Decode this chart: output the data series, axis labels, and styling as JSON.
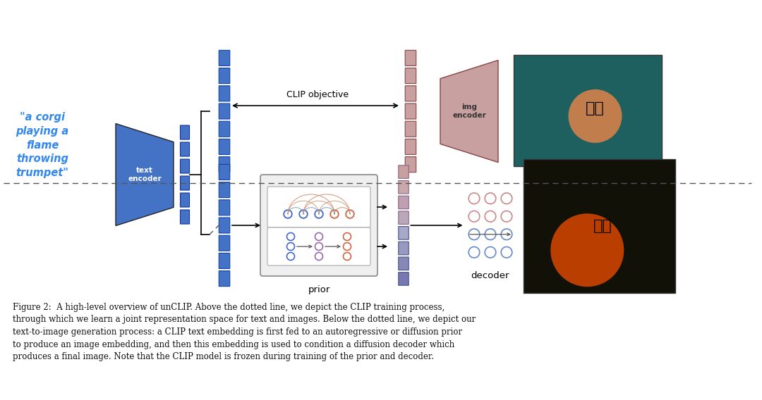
{
  "bg_color": "#ffffff",
  "text_color": "#000000",
  "blue_color": "#4472C4",
  "light_blue": "#6fa8dc",
  "pink_color": "#c9a0a0",
  "pink_dark": "#c07070",
  "corgi_text": "\"a corgi\nplaying a\nflame\nthrowing\ntrumpet\"",
  "encoder_label": "text\nencoder",
  "clip_label": "CLIP objective",
  "img_encoder_label": "img\nencoder",
  "prior_label": "prior",
  "decoder_label": "decoder",
  "caption": "Figure 2:  A high-level overview of unCLIP. Above the dotted line, we depict the CLIP training process,\nthrough which we learn a joint representation space for text and images. Below the dotted line, we depict our\ntext-to-image generation process: a CLIP text embedding is first fed to an autoregressive or diffusion prior\nto produce an image embedding, and then this embedding is used to condition a diffusion decoder which\nproduces a final image. Note that the CLIP model is frozen during training of the prior and decoder."
}
